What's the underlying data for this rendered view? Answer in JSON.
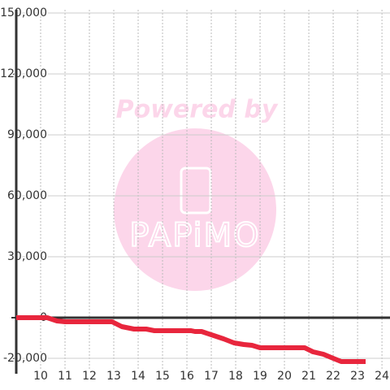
{
  "chart_data": {
    "type": "line",
    "watermark_text": "Powered by",
    "watermark_logo": "PAPiMO",
    "x": [
      9,
      10.27,
      10.67,
      11,
      12.93,
      13.33,
      13.83,
      14.33,
      14.67,
      16.17,
      16.33,
      16.6,
      17,
      17.5,
      17.93,
      18.33,
      18.67,
      19,
      20.83,
      21.17,
      21.6,
      22,
      22.33,
      23.33
    ],
    "series": [
      {
        "color": "#e8263d",
        "values": [
          0,
          0,
          -1600,
          -2000,
          -2000,
          -4400,
          -5600,
          -5600,
          -6400,
          -6400,
          -6800,
          -6800,
          -8400,
          -10400,
          -12400,
          -13200,
          -13600,
          -14800,
          -14800,
          -16800,
          -18000,
          -20000,
          -21600,
          -21600
        ]
      }
    ],
    "xlim": [
      9,
      24.33
    ],
    "xticks": [
      10,
      11,
      12,
      13,
      14,
      15,
      16,
      17,
      18,
      19,
      20,
      21,
      22,
      23,
      24
    ],
    "ylim": [
      -24000,
      150000
    ],
    "yticks": [
      {
        "value": -20000,
        "label": "-20,000"
      },
      0,
      {
        "value": 30000,
        "label": "30,000"
      },
      {
        "value": 60000,
        "label": "60,000"
      },
      {
        "value": 90000,
        "label": "90,000"
      },
      {
        "value": 120000,
        "label": "120,000"
      },
      {
        "value": 150000,
        "label": "150,000"
      }
    ],
    "grid": true
  }
}
